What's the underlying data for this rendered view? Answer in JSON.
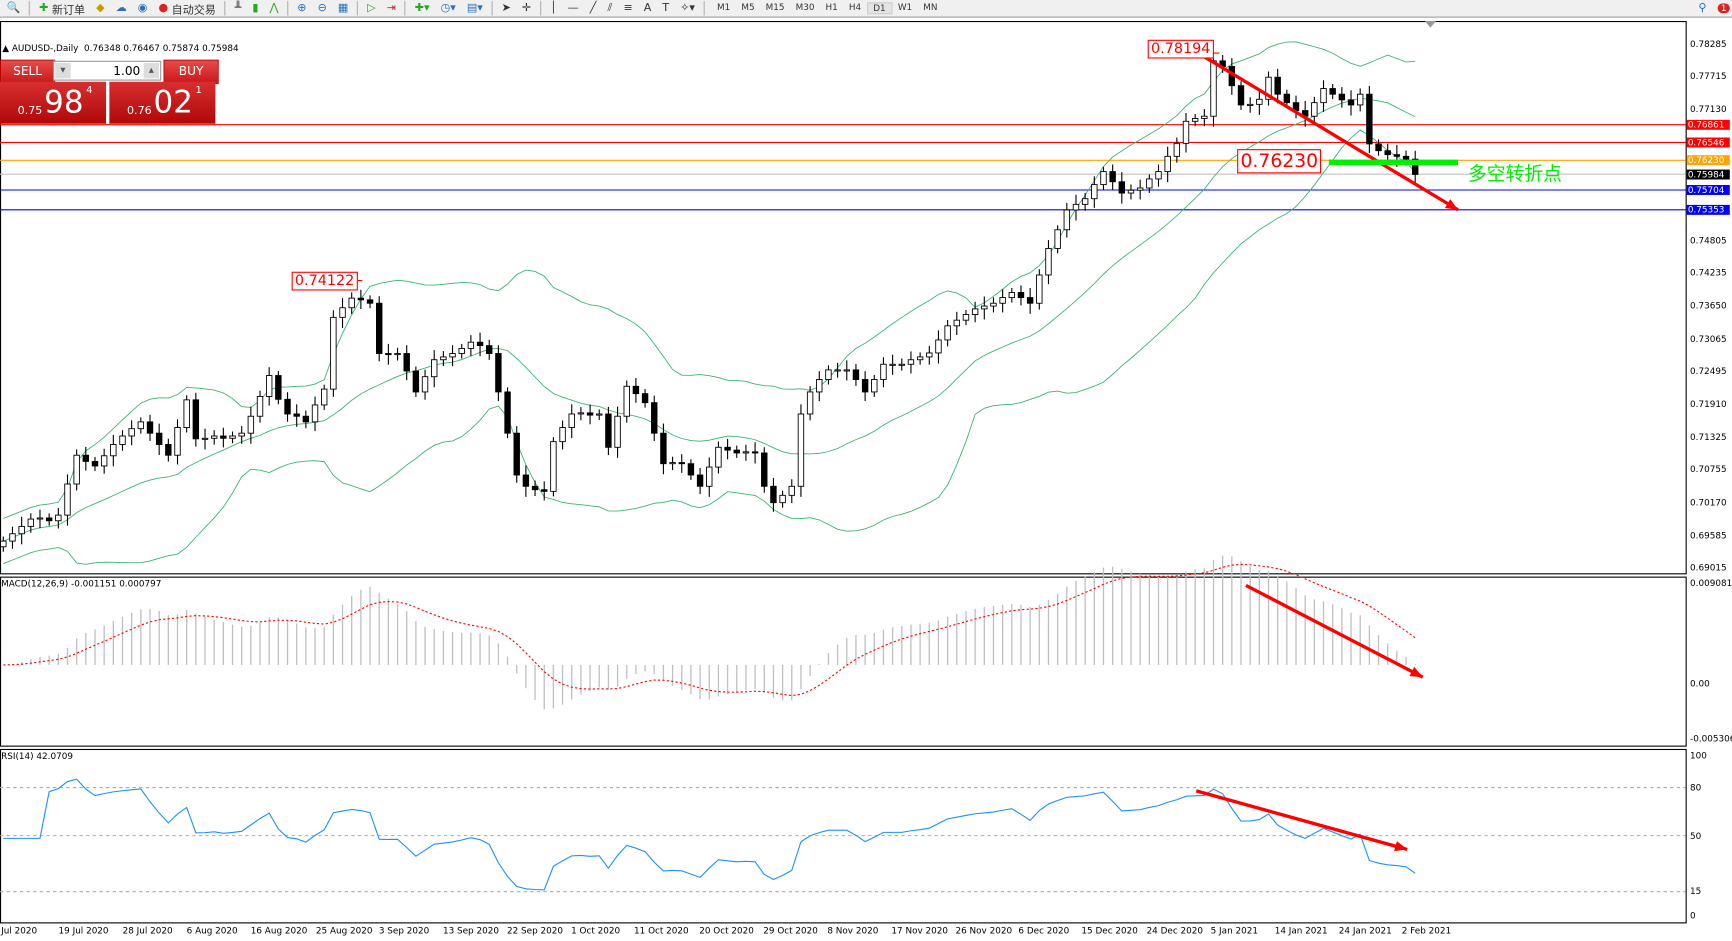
{
  "toolbar": {
    "new_order": "新订单",
    "auto_trading": "自动交易",
    "timeframes": [
      "M1",
      "M5",
      "M15",
      "M30",
      "H1",
      "H4",
      "D1",
      "W1",
      "MN"
    ],
    "active_timeframe": "D1",
    "notification_count": "1"
  },
  "chart_header": {
    "symbol": "AUDUSD-,Daily",
    "ohlc": "0.76348 0.76467 0.75874 0.75984"
  },
  "trade_panel": {
    "sell_label": "SELL",
    "buy_label": "BUY",
    "volume": "1.00",
    "sell_prefix": "0.75",
    "sell_big": "98",
    "sell_sup": "4",
    "buy_prefix": "0.76",
    "buy_big": "02",
    "buy_sup": "1"
  },
  "price_axis": [
    "0.78285",
    "0.77715",
    "0.77130",
    "0.74805",
    "0.74235",
    "0.73650",
    "0.73065",
    "0.72495",
    "0.71910",
    "0.71325",
    "0.70755",
    "0.70170",
    "0.69585",
    "0.69015"
  ],
  "levels": [
    {
      "price": "0.76861",
      "color": "#ff0000"
    },
    {
      "price": "0.76546",
      "color": "#ff0000"
    },
    {
      "price": "0.76230",
      "color": "#ffa500"
    },
    {
      "price": "0.75984",
      "color": "#000000",
      "line": "#c0c0c0"
    },
    {
      "price": "0.75704",
      "color": "#0000ff"
    },
    {
      "price": "0.75353",
      "color": "#0000ff"
    }
  ],
  "annotations": {
    "high_label": "0.78194",
    "swing_label": "0.74122",
    "pivot_label": "0.76230",
    "pivot_text": "多空转折点",
    "pivot_color": "#00ee00",
    "arrow_color": "#ff0000"
  },
  "macd": {
    "label": "MACD(12,26,9) -0.001151 0.000797",
    "axis": [
      "0.009081",
      "0.00",
      "-0.005306"
    ]
  },
  "rsi": {
    "label": "RSI(14) 42.0709",
    "axis": [
      "100",
      "80",
      "50",
      "15",
      "0"
    ]
  },
  "date_axis": [
    "Jul 2020",
    "19 Jul 2020",
    "28 Jul 2020",
    "6 Aug 2020",
    "16 Aug 2020",
    "25 Aug 2020",
    "3 Sep 2020",
    "13 Sep 2020",
    "22 Sep 2020",
    "1 Oct 2020",
    "11 Oct 2020",
    "20 Oct 2020",
    "29 Oct 2020",
    "8 Nov 2020",
    "17 Nov 2020",
    "26 Nov 2020",
    "6 Dec 2020",
    "15 Dec 2020",
    "24 Dec 2020",
    "5 Jan 2021",
    "14 Jan 2021",
    "24 Jan 2021",
    "2 Feb 2021"
  ],
  "chart_data": {
    "type": "candlestick",
    "symbol": "AUDUSD",
    "timeframe": "Daily",
    "ylim": [
      0.69015,
      0.78285
    ],
    "indicators": [
      "Bollinger Bands (20,2)",
      "MACD(12,26,9)",
      "RSI(14)"
    ],
    "close": [
      0.6949,
      0.6962,
      0.6975,
      0.6988,
      0.699,
      0.6985,
      0.6995,
      0.705,
      0.7101,
      0.709,
      0.7082,
      0.71,
      0.712,
      0.7135,
      0.7148,
      0.716,
      0.714,
      0.712,
      0.7101,
      0.715,
      0.7199,
      0.713,
      0.7131,
      0.7135,
      0.7131,
      0.7135,
      0.714,
      0.717,
      0.7205,
      0.7242,
      0.72,
      0.7174,
      0.717,
      0.716,
      0.719,
      0.7218,
      0.7345,
      0.7362,
      0.7379,
      0.7376,
      0.737,
      0.7281,
      0.728,
      0.7281,
      0.725,
      0.7213,
      0.724,
      0.727,
      0.7275,
      0.7281,
      0.729,
      0.7301,
      0.7295,
      0.7281,
      0.7213,
      0.714,
      0.7066,
      0.7046,
      0.704,
      0.7037,
      0.7125,
      0.715,
      0.7174,
      0.7176,
      0.7172,
      0.7174,
      0.7115,
      0.717,
      0.7223,
      0.721,
      0.7194,
      0.714,
      0.7086,
      0.7088,
      0.7086,
      0.7066,
      0.7046,
      0.708,
      0.7115,
      0.711,
      0.7105,
      0.7107,
      0.7105,
      0.7046,
      0.7017,
      0.703,
      0.7046,
      0.7174,
      0.7213,
      0.7235,
      0.7252,
      0.7252,
      0.7252,
      0.7235,
      0.7213,
      0.7235,
      0.7262,
      0.7262,
      0.7262,
      0.727,
      0.7275,
      0.7282,
      0.7305,
      0.733,
      0.734,
      0.735,
      0.736,
      0.7365,
      0.737,
      0.738,
      0.7389,
      0.738,
      0.737,
      0.742,
      0.7467,
      0.75,
      0.7535,
      0.7545,
      0.7555,
      0.758,
      0.7603,
      0.7585,
      0.7565,
      0.757,
      0.7574,
      0.759,
      0.7603,
      0.763,
      0.7653,
      0.7692,
      0.7697,
      0.7701,
      0.7799,
      0.7789,
      0.7755,
      0.7721,
      0.7722,
      0.7731,
      0.777,
      0.774,
      0.7725,
      0.7711,
      0.7701,
      0.7725,
      0.775,
      0.774,
      0.773,
      0.7721,
      0.774,
      0.7652,
      0.764,
      0.7633,
      0.763,
      0.7625,
      0.7598
    ]
  }
}
